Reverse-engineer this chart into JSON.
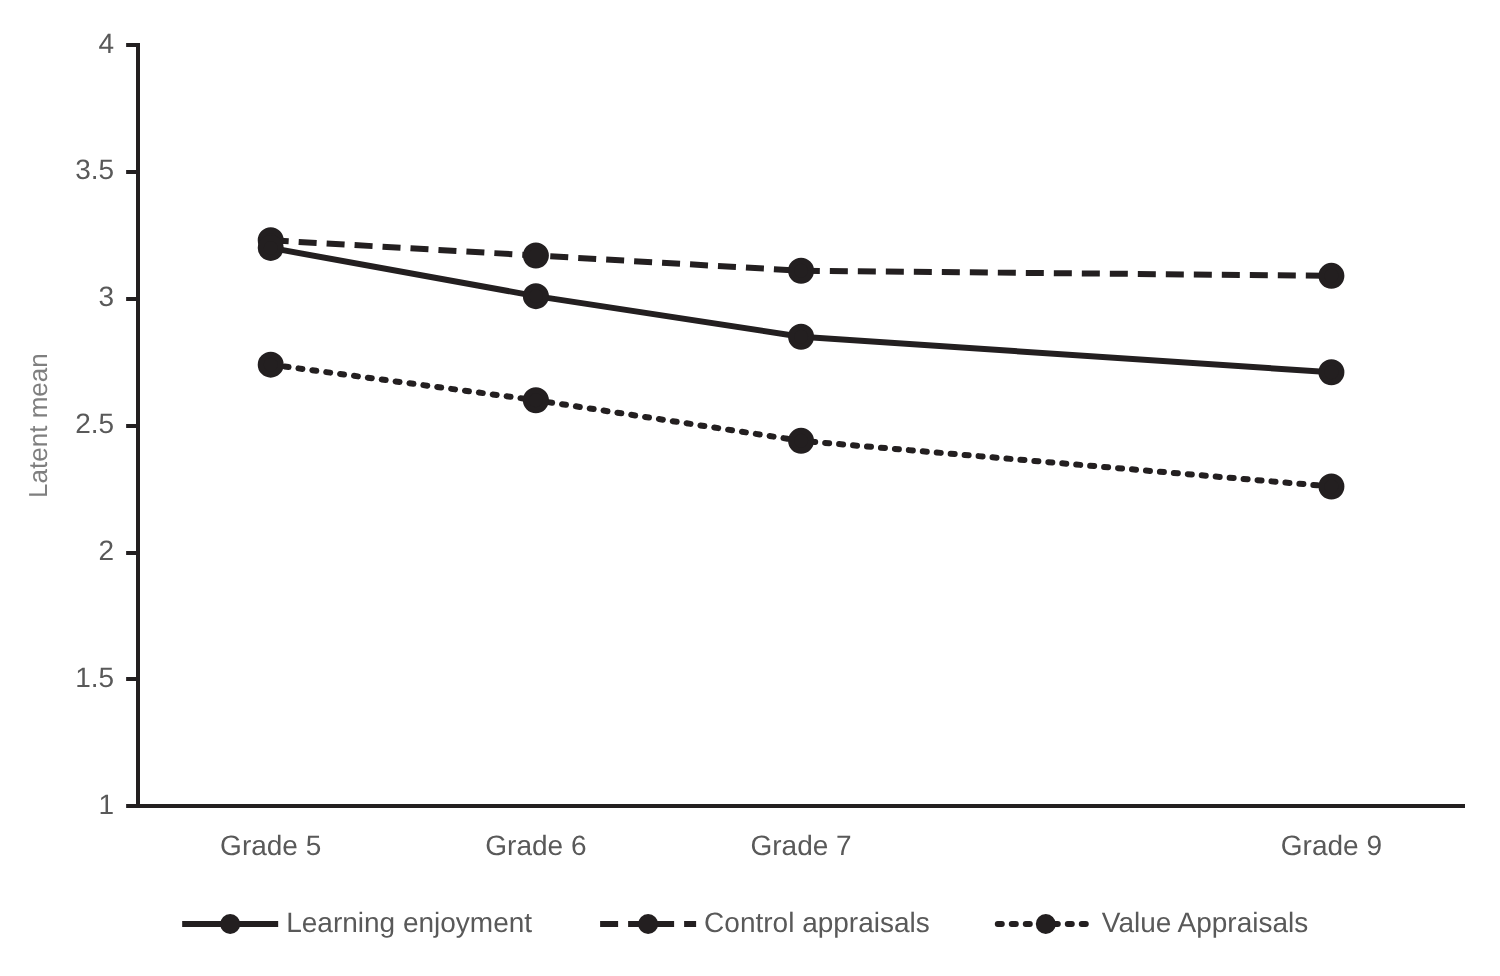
{
  "chart_data": {
    "type": "line",
    "ylabel": "Latent mean",
    "categories": [
      "Grade 5",
      "Grade 6",
      "Grade 7",
      null,
      "Grade 9"
    ],
    "ylim": [
      1,
      4
    ],
    "yticks": [
      1,
      1.5,
      2,
      2.5,
      3,
      3.5,
      4
    ],
    "grid": false,
    "legend": "bottom",
    "marker": "circle",
    "series": [
      {
        "name": "Learning enjoyment",
        "color": "#231f20",
        "line_style": "solid",
        "values": [
          3.2,
          3.01,
          2.85,
          null,
          2.71
        ]
      },
      {
        "name": "Control appraisals",
        "color": "#231f20",
        "line_style": "dashed",
        "values": [
          3.23,
          3.17,
          3.11,
          null,
          3.09
        ]
      },
      {
        "name": "Value Appraisals",
        "color": "#231f20",
        "line_style": "dotted",
        "values": [
          2.74,
          2.6,
          2.44,
          null,
          2.26
        ]
      }
    ]
  }
}
